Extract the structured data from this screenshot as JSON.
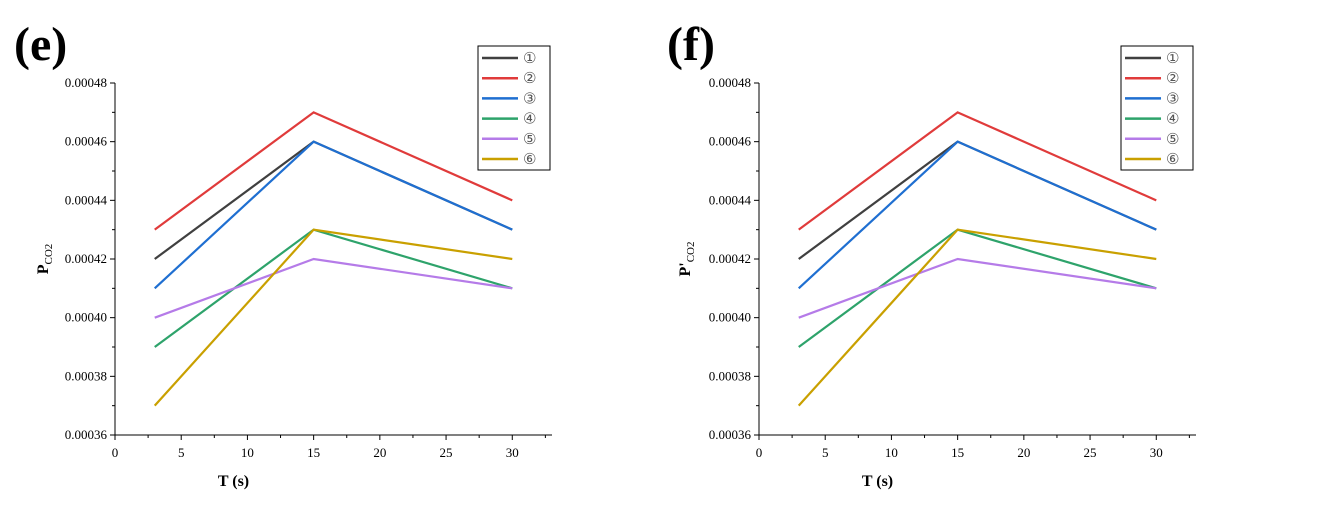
{
  "chart_data": [
    {
      "type": "line",
      "panel_label": "(e)",
      "xlabel": "T  (s)",
      "ylabel_main": "P",
      "ylabel_sub": "CO2",
      "xlim": [
        0,
        33
      ],
      "ylim": [
        0.00036,
        0.00048
      ],
      "xticks": [
        0,
        5,
        10,
        15,
        20,
        25,
        30
      ],
      "yticks": [
        0.00036,
        0.00038,
        0.0004,
        0.00042,
        0.00044,
        0.00046,
        0.00048
      ],
      "ytick_labels": [
        "0.00036",
        "0.00038",
        "0.00040",
        "0.00042",
        "0.00044",
        "0.00046",
        "0.00048"
      ],
      "legend_position": "top-right",
      "grid": false,
      "x": [
        3,
        15,
        30
      ],
      "series": [
        {
          "name": "①",
          "color": "#404040",
          "values": [
            0.00042,
            0.00046,
            0.00043
          ]
        },
        {
          "name": "②",
          "color": "#e03b3b",
          "values": [
            0.00043,
            0.00047,
            0.00044
          ]
        },
        {
          "name": "③",
          "color": "#1f6fd1",
          "values": [
            0.00041,
            0.00046,
            0.00043
          ]
        },
        {
          "name": "④",
          "color": "#2ea36b",
          "values": [
            0.00039,
            0.00043,
            0.00041
          ]
        },
        {
          "name": "⑤",
          "color": "#b57be8",
          "values": [
            0.0004,
            0.00042,
            0.00041
          ]
        },
        {
          "name": "⑥",
          "color": "#c9a000",
          "values": [
            0.00037,
            0.00043,
            0.00042
          ]
        }
      ]
    },
    {
      "type": "line",
      "panel_label": "(f)",
      "xlabel": "T  (s)",
      "ylabel_main": "P'",
      "ylabel_sub": "CO2",
      "xlim": [
        0,
        33
      ],
      "ylim": [
        0.00036,
        0.00048
      ],
      "xticks": [
        0,
        5,
        10,
        15,
        20,
        25,
        30
      ],
      "yticks": [
        0.00036,
        0.00038,
        0.0004,
        0.00042,
        0.00044,
        0.00046,
        0.00048
      ],
      "ytick_labels": [
        "0.00036",
        "0.00038",
        "0.00040",
        "0.00042",
        "0.00044",
        "0.00046",
        "0.00048"
      ],
      "legend_position": "top-right",
      "grid": false,
      "x": [
        3,
        15,
        30
      ],
      "series": [
        {
          "name": "①",
          "color": "#404040",
          "values": [
            0.00042,
            0.00046,
            0.00043
          ]
        },
        {
          "name": "②",
          "color": "#e03b3b",
          "values": [
            0.00043,
            0.00047,
            0.00044
          ]
        },
        {
          "name": "③",
          "color": "#1f6fd1",
          "values": [
            0.00041,
            0.00046,
            0.00043
          ]
        },
        {
          "name": "④",
          "color": "#2ea36b",
          "values": [
            0.00039,
            0.00043,
            0.00041
          ]
        },
        {
          "name": "⑤",
          "color": "#b57be8",
          "values": [
            0.0004,
            0.00042,
            0.00041
          ]
        },
        {
          "name": "⑥",
          "color": "#c9a000",
          "values": [
            0.00037,
            0.00043,
            0.00042
          ]
        }
      ]
    }
  ]
}
